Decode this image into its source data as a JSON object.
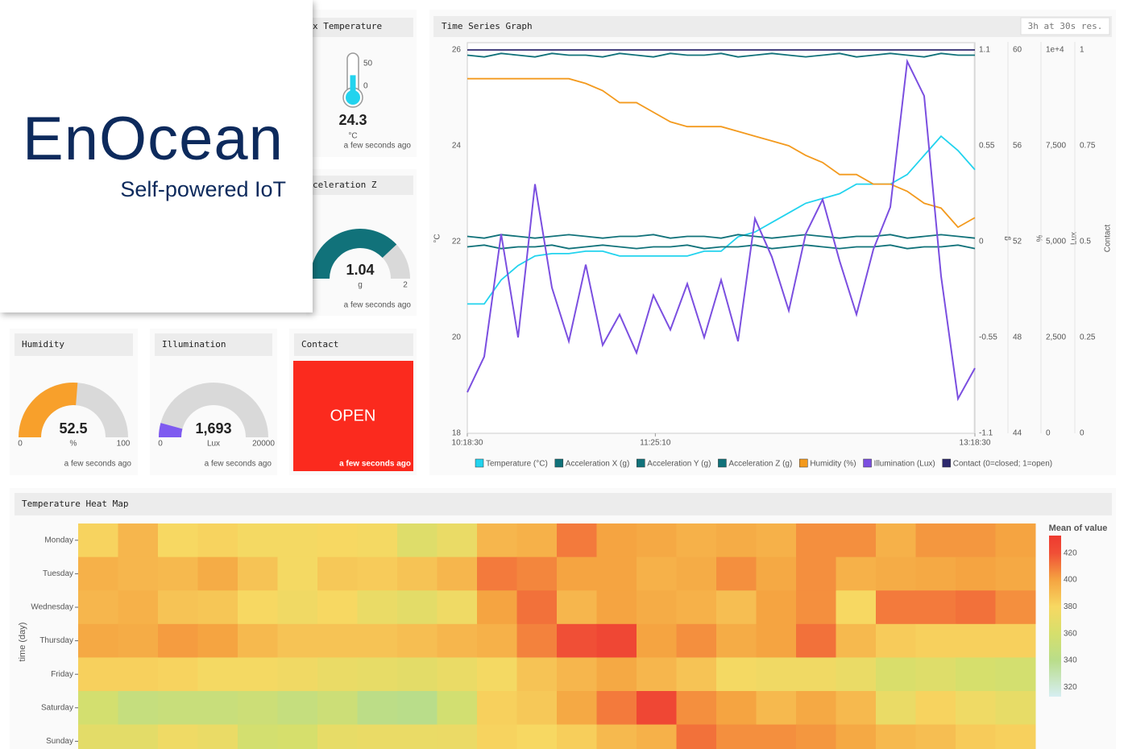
{
  "logo": {
    "title": "EnOcean",
    "subtitle": "Self-powered IoT"
  },
  "panels": {
    "temperature": {
      "title": "x Temperature",
      "value": 24.3,
      "unit": "°C",
      "ticks": [
        50,
        0
      ],
      "updated": "a few seconds ago",
      "color": "#22d3ee"
    },
    "acceleration_z": {
      "title": "celeration Z",
      "value": 1.04,
      "unit": "g",
      "max": 2,
      "updated": "a few seconds ago",
      "color": "#11727a"
    },
    "humidity": {
      "title": "Humidity",
      "value": 52.5,
      "unit": "%",
      "min": 0,
      "max": 100,
      "updated": "a few seconds ago",
      "color": "#f8a02b"
    },
    "illumination": {
      "title": "Illumination",
      "value": 1693,
      "value_label": "1,693",
      "unit": "Lux",
      "min": 0,
      "max": 20000,
      "updated": "a few seconds ago",
      "color": "#7e5af0"
    },
    "contact": {
      "title": "Contact",
      "state": "OPEN",
      "updated": "a few seconds ago",
      "color": "#fb2a1e"
    }
  },
  "chart_data": [
    {
      "type": "line",
      "title": "Time Series Graph",
      "badge": "3h at 30s res.",
      "x": [
        0,
        6,
        12,
        18,
        24,
        30,
        36,
        42,
        48,
        54,
        60,
        66,
        72,
        78,
        84,
        90,
        96,
        102,
        108,
        114,
        120,
        126,
        132,
        138,
        144,
        150,
        156,
        162,
        168,
        174,
        180
      ],
      "xlim": [
        0,
        180
      ],
      "xticks": [
        {
          "value": 0,
          "label": "10:18:30"
        },
        {
          "value": 66.67,
          "label": "11:25:10"
        },
        {
          "value": 180,
          "label": "13:18:30"
        }
      ],
      "axes": {
        "y": {
          "label": "°C",
          "lim": [
            18,
            26
          ],
          "ticks": [
            18,
            20,
            22,
            24,
            26
          ]
        },
        "g": {
          "label": "g",
          "lim": [
            -1.1,
            1.1
          ],
          "ticks": [
            -1.1,
            -0.55,
            0,
            0.55,
            1.1
          ]
        },
        "pct": {
          "label": "%",
          "lim": [
            44,
            60
          ],
          "ticks": [
            44,
            48,
            52,
            56,
            60
          ]
        },
        "lux": {
          "label": "Lux",
          "lim": [
            0,
            10000
          ],
          "ticks": [
            0,
            {
              "value": 2500,
              "label": "2,500"
            },
            {
              "value": 5000,
              "label": "5,000"
            },
            {
              "value": 7500,
              "label": "7,500"
            },
            {
              "value": 10000,
              "label": "1e+4"
            }
          ]
        },
        "contact": {
          "label": "Contact",
          "lim": [
            0,
            1
          ],
          "ticks": [
            0,
            0.25,
            0.5,
            0.75,
            1
          ]
        }
      },
      "series": [
        {
          "name": "Temperature (°C)",
          "color": "#22d3ee",
          "axis": "y",
          "values": [
            20.7,
            20.7,
            21.2,
            21.5,
            21.7,
            21.75,
            21.75,
            21.8,
            21.8,
            21.7,
            21.7,
            21.7,
            21.7,
            21.7,
            21.8,
            21.8,
            22.1,
            22.2,
            22.4,
            22.6,
            22.8,
            22.9,
            23.0,
            23.2,
            23.2,
            23.2,
            23.4,
            23.8,
            24.2,
            23.9,
            23.5
          ]
        },
        {
          "name": "Acceleration X (g)",
          "color": "#11727a",
          "axis": "g",
          "values": [
            1.07,
            1.06,
            1.08,
            1.07,
            1.06,
            1.08,
            1.07,
            1.07,
            1.06,
            1.08,
            1.07,
            1.06,
            1.08,
            1.07,
            1.07,
            1.08,
            1.06,
            1.07,
            1.08,
            1.07,
            1.06,
            1.07,
            1.08,
            1.06,
            1.07,
            1.08,
            1.07,
            1.06,
            1.08,
            1.07,
            1.07
          ]
        },
        {
          "name": "Acceleration Y (g)",
          "color": "#11727a",
          "axis": "g",
          "values": [
            0.03,
            0.02,
            0.04,
            0.03,
            0.02,
            0.03,
            0.04,
            0.03,
            0.02,
            0.03,
            0.03,
            0.04,
            0.02,
            0.03,
            0.03,
            0.02,
            0.04,
            0.03,
            0.02,
            0.03,
            0.04,
            0.03,
            0.02,
            0.03,
            0.03,
            0.04,
            0.02,
            0.03,
            0.04,
            0.03,
            0.02
          ]
        },
        {
          "name": "Acceleration Z (g)",
          "color": "#11727a",
          "axis": "g",
          "values": [
            -0.03,
            -0.02,
            -0.04,
            -0.03,
            -0.03,
            -0.02,
            -0.04,
            -0.03,
            -0.02,
            -0.03,
            -0.04,
            -0.03,
            -0.03,
            -0.02,
            -0.04,
            -0.03,
            -0.03,
            -0.02,
            -0.04,
            -0.03,
            -0.02,
            -0.03,
            -0.04,
            -0.03,
            -0.03,
            -0.02,
            -0.04,
            -0.03,
            -0.03,
            -0.02,
            -0.04
          ]
        },
        {
          "name": "Humidity (%)",
          "color": "#f39a1e",
          "axis": "pct",
          "values": [
            58.8,
            58.8,
            58.8,
            58.8,
            58.8,
            58.8,
            58.8,
            58.6,
            58.3,
            57.8,
            57.8,
            57.4,
            57.0,
            56.8,
            56.8,
            56.8,
            56.6,
            56.4,
            56.2,
            56.0,
            55.6,
            55.3,
            54.8,
            54.8,
            54.4,
            54.4,
            54.1,
            53.6,
            53.4,
            52.6,
            53.0
          ]
        },
        {
          "name": "Illumination (Lux)",
          "color": "#7b4fe0",
          "axis": "lux",
          "values": [
            1070,
            2000,
            5200,
            2500,
            6500,
            3800,
            2400,
            4400,
            2300,
            3100,
            2100,
            3600,
            2700,
            3900,
            2500,
            4000,
            2400,
            5600,
            4600,
            3200,
            5200,
            6100,
            4500,
            3100,
            4800,
            5900,
            9700,
            8800,
            4100,
            900,
            1700
          ]
        },
        {
          "name": "Contact (0=closed; 1=open)",
          "color": "#2e2a6e",
          "axis": "contact",
          "values": [
            1,
            1,
            1,
            1,
            1,
            1,
            1,
            1,
            1,
            1,
            1,
            1,
            1,
            1,
            1,
            1,
            1,
            1,
            1,
            1,
            1,
            1,
            1,
            1,
            1,
            1,
            1,
            1,
            1,
            1,
            1
          ]
        }
      ]
    },
    {
      "type": "heatmap",
      "title": "Temperature Heat Map",
      "ylabel": "time (day)",
      "rows": [
        "Monday",
        "Tuesday",
        "Wednesday",
        "Thursday",
        "Friday",
        "Saturday",
        "Sunday"
      ],
      "values": [
        [
          382,
          393,
          380,
          382,
          378,
          378,
          380,
          378,
          365,
          372,
          393,
          395,
          410,
          400,
          398,
          395,
          397,
          395,
          405,
          405,
          395,
          403,
          403,
          400
        ],
        [
          395,
          393,
          392,
          397,
          388,
          378,
          386,
          385,
          388,
          393,
          410,
          407,
          400,
          400,
          395,
          397,
          405,
          398,
          405,
          395,
          397,
          398,
          400,
          398
        ],
        [
          393,
          395,
          388,
          387,
          380,
          376,
          380,
          372,
          368,
          375,
          400,
          412,
          393,
          400,
          397,
          395,
          390,
          400,
          405,
          380,
          410,
          410,
          412,
          405
        ],
        [
          398,
          397,
          402,
          400,
          392,
          388,
          388,
          388,
          390,
          393,
          395,
          408,
          420,
          425,
          400,
          405,
          397,
          400,
          412,
          392,
          385,
          383,
          383,
          383
        ],
        [
          383,
          383,
          382,
          378,
          378,
          376,
          372,
          370,
          368,
          372,
          378,
          388,
          393,
          398,
          393,
          388,
          378,
          376,
          376,
          372,
          362,
          365,
          360,
          358
        ],
        [
          358,
          348,
          350,
          350,
          353,
          348,
          353,
          342,
          340,
          357,
          383,
          386,
          398,
          410,
          425,
          405,
          400,
          392,
          398,
          392,
          372,
          382,
          375,
          370
        ],
        [
          368,
          368,
          375,
          372,
          358,
          360,
          370,
          372,
          372,
          373,
          382,
          380,
          384,
          392,
          395,
          412,
          405,
          405,
          403,
          398,
          392,
          390,
          385,
          383
        ]
      ],
      "colorbar_title": "Mean of value",
      "zlim": [
        313,
        433
      ],
      "zticks": [
        320,
        340,
        360,
        380,
        400,
        420
      ],
      "colorscale": [
        [
          313,
          "#d6eef2"
        ],
        [
          340,
          "#b9dd8a"
        ],
        [
          360,
          "#d6df6c"
        ],
        [
          380,
          "#f7d862"
        ],
        [
          400,
          "#f5a441"
        ],
        [
          420,
          "#f04f36"
        ],
        [
          433,
          "#ee3a30"
        ]
      ]
    }
  ]
}
